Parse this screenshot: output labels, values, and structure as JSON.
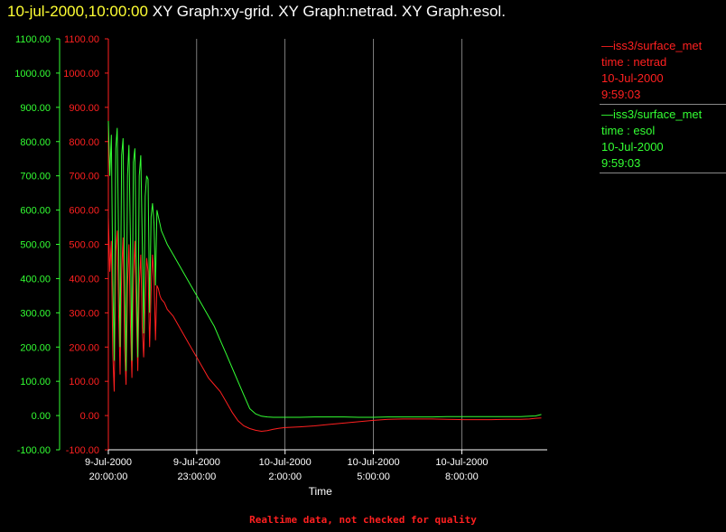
{
  "title": {
    "timestamp": "10-jul-2000,10:00:00",
    "rest": "XY Graph:xy-grid.  XY Graph:netrad.  XY Graph:esol."
  },
  "legend": [
    {
      "line1": "—iss3/surface_met",
      "line2": "time : netrad",
      "line3": "10-Jul-2000",
      "line4": "9:59:03",
      "color": "#ff2020"
    },
    {
      "line1": "—iss3/surface_met",
      "line2": "time : esol",
      "line3": "10-Jul-2000",
      "line4": "9:59:03",
      "color": "#33ff33"
    }
  ],
  "footer": "Realtime data, not checked for quality",
  "chart_data": {
    "type": "line",
    "xlabel": "Time",
    "xlim": [
      20.0,
      34.9
    ],
    "ylim": [
      -100,
      1100
    ],
    "yticks": [
      "1100.00",
      "1000.00",
      "900.00",
      "800.00",
      "700.00",
      "600.00",
      "500.00",
      "400.00",
      "300.00",
      "200.00",
      "100.00",
      "0.00",
      "-100.00"
    ],
    "ytick_values": [
      1100,
      1000,
      900,
      800,
      700,
      600,
      500,
      400,
      300,
      200,
      100,
      0,
      -100
    ],
    "xticks": [
      {
        "x": 20,
        "date": "9-Jul-2000",
        "time": "20:00:00"
      },
      {
        "x": 23,
        "date": "9-Jul-2000",
        "time": "23:00:00"
      },
      {
        "x": 26,
        "date": "10-Jul-2000",
        "time": "2:00:00"
      },
      {
        "x": 29,
        "date": "10-Jul-2000",
        "time": "5:00:00"
      },
      {
        "x": 32,
        "date": "10-Jul-2000",
        "time": "8:00:00"
      }
    ],
    "colors": {
      "axis": "#ffffff",
      "grid": "#ffffff",
      "netrad": "#ff2020",
      "esol": "#33ff33",
      "yaxis_green": "#33ff33"
    },
    "series": [
      {
        "name": "netrad",
        "color": "#ff2020",
        "x": [
          20.0,
          20.05,
          20.1,
          20.15,
          20.2,
          20.25,
          20.3,
          20.35,
          20.4,
          20.45,
          20.5,
          20.55,
          20.6,
          20.65,
          20.7,
          20.75,
          20.8,
          20.85,
          20.9,
          20.95,
          21.0,
          21.05,
          21.1,
          21.15,
          21.2,
          21.25,
          21.3,
          21.35,
          21.4,
          21.45,
          21.5,
          21.55,
          21.6,
          21.65,
          21.7,
          21.75,
          21.8,
          21.9,
          22.0,
          22.2,
          22.4,
          22.6,
          22.8,
          23.0,
          23.2,
          23.4,
          23.6,
          23.8,
          24.0,
          24.2,
          24.4,
          24.6,
          24.8,
          25.0,
          25.2,
          25.4,
          25.6,
          25.8,
          26.0,
          26.5,
          27.0,
          27.5,
          28.0,
          28.5,
          29.0,
          29.5,
          30.0,
          30.5,
          31.0,
          31.5,
          32.0,
          32.5,
          33.0,
          33.5,
          34.0,
          34.3,
          34.5,
          34.7
        ],
        "y": [
          580,
          420,
          510,
          180,
          70,
          480,
          540,
          300,
          120,
          420,
          520,
          200,
          90,
          380,
          500,
          260,
          110,
          400,
          510,
          300,
          130,
          380,
          470,
          260,
          170,
          330,
          460,
          420,
          200,
          360,
          470,
          400,
          220,
          380,
          370,
          350,
          340,
          330,
          310,
          290,
          260,
          230,
          200,
          170,
          140,
          110,
          90,
          70,
          40,
          10,
          -15,
          -30,
          -38,
          -43,
          -46,
          -44,
          -40,
          -37,
          -35,
          -33,
          -30,
          -26,
          -22,
          -18,
          -14,
          -11,
          -10,
          -10,
          -10,
          -11,
          -12,
          -12,
          -12,
          -11,
          -11,
          -10,
          -8,
          -7
        ]
      },
      {
        "name": "esol",
        "color": "#33ff33",
        "x": [
          20.0,
          20.05,
          20.1,
          20.15,
          20.2,
          20.25,
          20.3,
          20.35,
          20.4,
          20.45,
          20.5,
          20.55,
          20.6,
          20.65,
          20.7,
          20.75,
          20.8,
          20.85,
          20.9,
          20.95,
          21.0,
          21.05,
          21.1,
          21.15,
          21.2,
          21.25,
          21.3,
          21.35,
          21.4,
          21.45,
          21.5,
          21.55,
          21.6,
          21.65,
          21.7,
          21.75,
          21.8,
          21.9,
          22.0,
          22.2,
          22.4,
          22.6,
          22.8,
          23.0,
          23.2,
          23.4,
          23.6,
          23.8,
          24.0,
          24.2,
          24.4,
          24.6,
          24.8,
          25.0,
          25.2,
          25.4,
          25.6,
          25.8,
          26.0,
          26.5,
          27.0,
          27.5,
          28.0,
          28.5,
          29.0,
          29.5,
          30.0,
          30.5,
          31.0,
          31.5,
          32.0,
          32.5,
          33.0,
          33.5,
          34.0,
          34.3,
          34.5,
          34.7
        ],
        "y": [
          860,
          700,
          820,
          400,
          160,
          780,
          840,
          500,
          200,
          760,
          810,
          420,
          130,
          700,
          790,
          500,
          160,
          740,
          780,
          420,
          170,
          700,
          760,
          520,
          240,
          640,
          700,
          690,
          300,
          580,
          620,
          560,
          380,
          600,
          580,
          560,
          540,
          520,
          500,
          470,
          440,
          410,
          380,
          350,
          320,
          290,
          260,
          220,
          180,
          140,
          100,
          60,
          20,
          5,
          -2,
          -4,
          -5,
          -5,
          -5,
          -5,
          -4,
          -4,
          -4,
          -5,
          -5,
          -4,
          -4,
          -4,
          -4,
          -3,
          -3,
          -3,
          -3,
          -3,
          -3,
          -2,
          -1,
          3
        ]
      }
    ]
  }
}
